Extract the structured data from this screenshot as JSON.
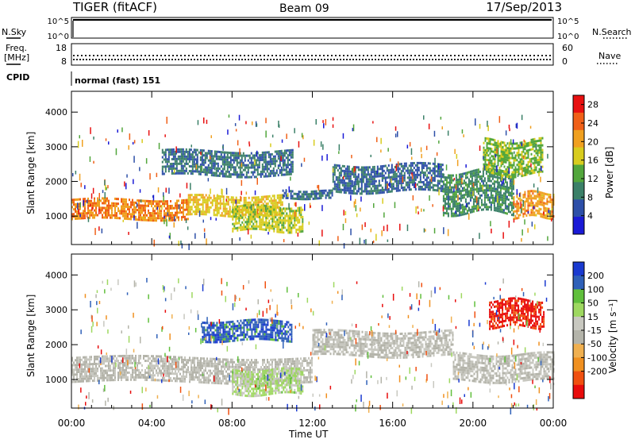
{
  "header": {
    "station": "TIGER (fitACF)",
    "beam": "Beam 09",
    "date": "17/Sep/2013"
  },
  "top_panels": {
    "nsky_label": "N.Sky",
    "nsky_ticks": [
      "10^5",
      "10^0"
    ],
    "nsearch_label": "N.Search",
    "freq_label_1": "Freq.",
    "freq_label_2": "[MHz]",
    "freq_ticks": [
      "18",
      "8"
    ],
    "nave_label": "Nave",
    "nave_ticks": [
      "60",
      "0"
    ],
    "cpid_label": "CPID",
    "cpid_text": "normal (fast) 151"
  },
  "colors": {
    "power_scale": [
      "#1a1ad6",
      "#2d4fa8",
      "#3b8068",
      "#52a63c",
      "#d8cc1e",
      "#f0a020",
      "#f06018",
      "#e81010"
    ],
    "velocity_scale": [
      "#1a3ad0",
      "#2f60b8",
      "#60bf3c",
      "#9ed860",
      "#c8c8c0",
      "#b4b4aa",
      "#f0b050",
      "#f09020",
      "#f05010",
      "#e80c0c"
    ]
  },
  "chart_data": [
    {
      "type": "heatmap",
      "title": "",
      "xlabel": "Time UT",
      "ylabel": "Slant Range [km]",
      "xlim": [
        "00:00",
        "24:00"
      ],
      "ylim": [
        180,
        4600
      ],
      "x_ticks": [
        "00:00",
        "04:00",
        "08:00",
        "12:00",
        "16:00",
        "20:00",
        "00:00"
      ],
      "y_ticks": [
        1000,
        2000,
        3000,
        4000
      ],
      "colorbar": {
        "label": "Power [dB]",
        "ticks": [
          4,
          8,
          12,
          16,
          20,
          24,
          28
        ],
        "range": [
          0,
          30
        ]
      },
      "regions": [
        {
          "name": "main band",
          "t": [
            0,
            5.8
          ],
          "r": [
            950,
            1500
          ],
          "value": 22
        },
        {
          "name": "main band",
          "t": [
            5.8,
            10.5
          ],
          "r": [
            1050,
            1600
          ],
          "value": 18
        },
        {
          "name": "main band",
          "t": [
            10.5,
            13
          ],
          "r": [
            1500,
            1750
          ],
          "value": 8
        },
        {
          "name": "rising arc",
          "t": [
            13,
            18.5
          ],
          "r": [
            1700,
            2500
          ],
          "value": 7
        },
        {
          "name": "descending arc",
          "t": [
            18.5,
            22
          ],
          "r": [
            1100,
            2300
          ],
          "value": 10
        },
        {
          "name": "late band",
          "t": [
            22,
            24
          ],
          "r": [
            1000,
            1700
          ],
          "value": 21
        },
        {
          "name": "low patch",
          "t": [
            8,
            11.5
          ],
          "r": [
            600,
            1300
          ],
          "value": 16
        },
        {
          "name": "upper patches",
          "t": [
            4.5,
            11
          ],
          "r": [
            2200,
            2900
          ],
          "value": 8
        },
        {
          "name": "late upper",
          "t": [
            20.5,
            23.5
          ],
          "r": [
            2200,
            3200
          ],
          "value": 14
        }
      ]
    },
    {
      "type": "heatmap",
      "title": "",
      "xlabel": "Time UT",
      "ylabel": "Slant Range [km]",
      "xlim": [
        "00:00",
        "24:00"
      ],
      "ylim": [
        180,
        4600
      ],
      "x_ticks": [
        "00:00",
        "04:00",
        "08:00",
        "12:00",
        "16:00",
        "20:00",
        "00:00"
      ],
      "y_ticks": [
        1000,
        2000,
        3000,
        4000
      ],
      "colorbar": {
        "label": "Velocity [m s⁻¹]",
        "ticks": [
          200,
          100,
          50,
          15,
          -15,
          -50,
          -100,
          -200
        ],
        "range": [
          -250,
          250
        ]
      },
      "regions": [
        {
          "name": "ground scatter band",
          "t": [
            0,
            12
          ],
          "r": [
            900,
            1650
          ],
          "value": 0
        },
        {
          "name": "ground scatter arc",
          "t": [
            12,
            19
          ],
          "r": [
            1700,
            2400
          ],
          "value": 0
        },
        {
          "name": "ground scatter late",
          "t": [
            19,
            24
          ],
          "r": [
            950,
            1750
          ],
          "value": 0
        },
        {
          "name": "green low patch",
          "t": [
            8,
            11.5
          ],
          "r": [
            600,
            1300
          ],
          "value": 60
        },
        {
          "name": "blue patches",
          "t": [
            6.5,
            11
          ],
          "r": [
            2100,
            2700
          ],
          "value": 180
        },
        {
          "name": "red late region",
          "t": [
            20.8,
            23.5
          ],
          "r": [
            2500,
            3300
          ],
          "value": -220
        }
      ]
    }
  ]
}
